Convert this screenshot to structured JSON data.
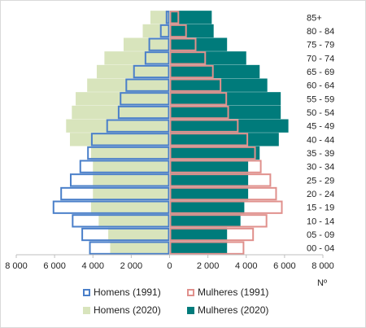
{
  "chart_data": {
    "type": "bar",
    "orientation": "horizontal",
    "categories": [
      "00 - 04",
      "05 - 09",
      "10 - 14",
      "15 - 19",
      "20 - 24",
      "25 - 29",
      "30 - 34",
      "35 - 39",
      "40 - 44",
      "45 - 49",
      "50 - 54",
      "55 - 59",
      "60 - 64",
      "65 - 69",
      "70 - 74",
      "75 - 79",
      "80 - 84",
      "85+"
    ],
    "series": [
      {
        "name": "Homens (1991)",
        "side": "left",
        "style": "outline",
        "color": "#4a7fc9",
        "values": [
          4200,
          4600,
          5100,
          6100,
          5700,
          5200,
          4700,
          4300,
          4100,
          3300,
          2700,
          2600,
          2300,
          1900,
          1300,
          1100,
          500,
          200
        ]
      },
      {
        "name": "Mulheres (1991)",
        "side": "right",
        "style": "outline",
        "color": "#e0908c",
        "values": [
          3900,
          4400,
          5100,
          5900,
          5600,
          5300,
          4800,
          4500,
          4100,
          3600,
          3100,
          3000,
          2700,
          2300,
          1900,
          1400,
          900,
          500
        ]
      },
      {
        "name": "Homens (2020)",
        "side": "left",
        "style": "fill",
        "color": "#d8e4bc",
        "values": [
          3100,
          3200,
          3700,
          4100,
          4000,
          4000,
          4000,
          4100,
          5200,
          5400,
          5100,
          4900,
          4300,
          3800,
          3400,
          2400,
          1400,
          1000
        ]
      },
      {
        "name": "Mulheres (2020)",
        "side": "right",
        "style": "fill",
        "color": "#007b7b",
        "values": [
          3000,
          3000,
          3700,
          3900,
          4100,
          4100,
          4100,
          4700,
          5700,
          6200,
          5800,
          5800,
          5100,
          4700,
          4000,
          3000,
          2300,
          2200
        ]
      }
    ],
    "x_ticks": [
      "8 000",
      "6 000",
      "4 000",
      "2 000",
      "0",
      "2 000",
      "4 000",
      "6 000",
      "8 000"
    ],
    "xlim": [
      -8000,
      8000
    ],
    "x_unit_label": "Nº",
    "title": "",
    "legend_position": "bottom",
    "grid": false
  }
}
